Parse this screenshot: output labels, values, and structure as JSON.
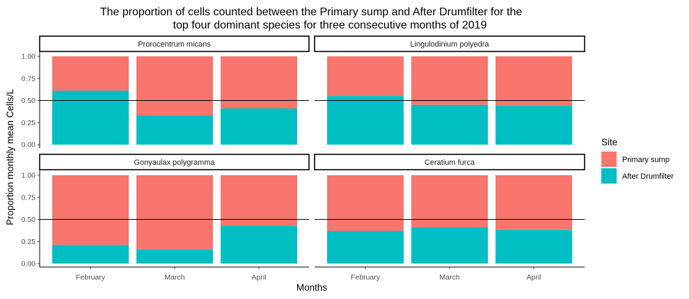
{
  "chart_data": {
    "type": "bar",
    "stacked": true,
    "title_line1": "The proportion of cells counted between the Primary sump and After Drumfilter for the",
    "title_line2": "top four dominant species for three consecutive months of 2019",
    "xlabel": "Months",
    "ylabel": "Proportion monthly mean Cells/L",
    "categories": [
      "February",
      "March",
      "April"
    ],
    "ylim": [
      0,
      1
    ],
    "yticks": [
      "0.00",
      "0.25",
      "0.50",
      "0.75",
      "1.00"
    ],
    "reference_line": 0.5,
    "grid": false,
    "legend": {
      "title": "Site",
      "position": "right",
      "entries": [
        {
          "label": "Primary sump",
          "color": "#F8766D"
        },
        {
          "label": "After Drumfilter",
          "color": "#00BFC4"
        }
      ]
    },
    "facets": [
      {
        "name": "Prorocentrum micans",
        "after_drumfilter": [
          0.61,
          0.33,
          0.41
        ]
      },
      {
        "name": "Lingulodinium polyedra",
        "after_drumfilter": [
          0.55,
          0.45,
          0.44
        ]
      },
      {
        "name": "Gonyaulax polygramma",
        "after_drumfilter": [
          0.21,
          0.16,
          0.43
        ]
      },
      {
        "name": "Ceratium furca",
        "after_drumfilter": [
          0.37,
          0.41,
          0.38
        ]
      }
    ]
  }
}
